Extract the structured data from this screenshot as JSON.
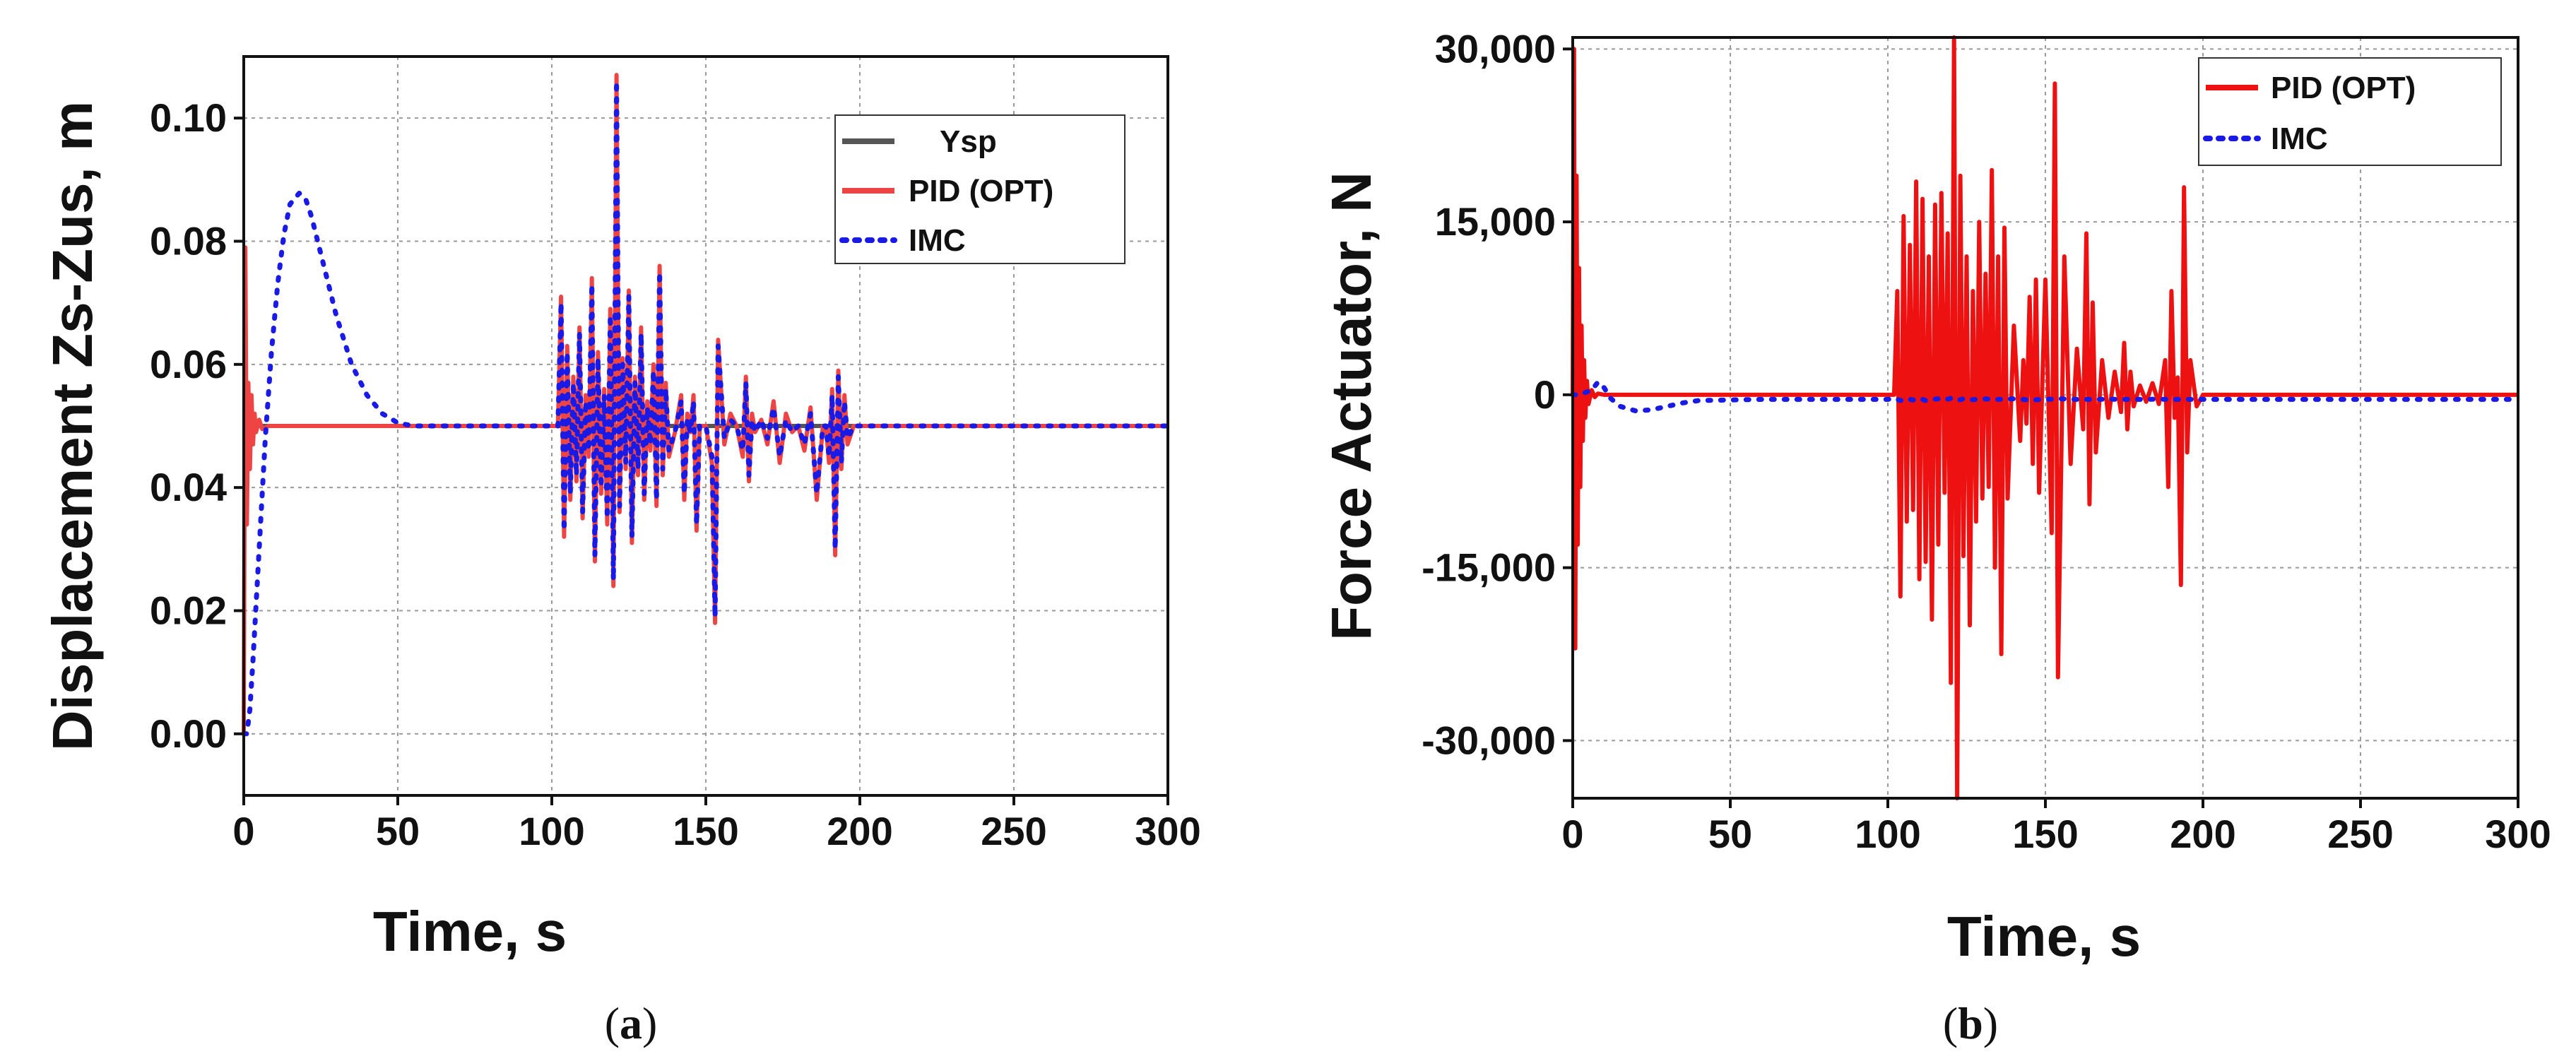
{
  "chart_data": [
    {
      "type": "line",
      "caption_letter": "a",
      "xlabel": "Time, s",
      "ylabel": "Displacement Zs-Zus, m",
      "xlim": [
        0,
        300
      ],
      "ylim": [
        -0.01,
        0.11
      ],
      "xticks": [
        0,
        50,
        100,
        150,
        200,
        250,
        300
      ],
      "xtick_labels": [
        "0",
        "50",
        "100",
        "150",
        "200",
        "250",
        "300"
      ],
      "yticks": [
        0.0,
        0.02,
        0.04,
        0.06,
        0.08,
        0.1
      ],
      "ytick_labels": [
        "0.00",
        "0.02",
        "0.04",
        "0.06",
        "0.08",
        "0.10"
      ],
      "grid": true,
      "legend_position": "top-right",
      "series": [
        {
          "name": "Ysp",
          "color": "#555555",
          "style": "solid",
          "x": [
            0,
            300
          ],
          "y": [
            0.05,
            0.05
          ]
        },
        {
          "name": "PID (OPT)",
          "color": "#ee4444",
          "style": "solid",
          "x": [
            0,
            0.5,
            1,
            1.5,
            2,
            2.5,
            3,
            3.5,
            4,
            5,
            6,
            8,
            100,
            102,
            103,
            104,
            105,
            106,
            107,
            108,
            109,
            110,
            111,
            112,
            113,
            114,
            115,
            116,
            117,
            118,
            119,
            120,
            121,
            122,
            123,
            124,
            125,
            126,
            127,
            128,
            129,
            130,
            131,
            132,
            133,
            134,
            135,
            136,
            137,
            138,
            140,
            142,
            143,
            144,
            145,
            146,
            147,
            148,
            150,
            152,
            153,
            154,
            156,
            158,
            160,
            162,
            163,
            164,
            165,
            166,
            168,
            170,
            172,
            174,
            176,
            178,
            180,
            182,
            184,
            186,
            188,
            189,
            190,
            191,
            192,
            193,
            194,
            195,
            196,
            198,
            200,
            300
          ],
          "y": [
            0.0,
            0.079,
            0.034,
            0.057,
            0.043,
            0.055,
            0.047,
            0.052,
            0.049,
            0.051,
            0.0495,
            0.05,
            0.05,
            0.05,
            0.071,
            0.032,
            0.063,
            0.038,
            0.058,
            0.041,
            0.066,
            0.035,
            0.055,
            0.045,
            0.074,
            0.028,
            0.062,
            0.039,
            0.056,
            0.034,
            0.069,
            0.024,
            0.107,
            0.036,
            0.061,
            0.043,
            0.072,
            0.031,
            0.058,
            0.042,
            0.066,
            0.038,
            0.054,
            0.046,
            0.06,
            0.037,
            0.076,
            0.042,
            0.057,
            0.045,
            0.049,
            0.055,
            0.038,
            0.052,
            0.049,
            0.055,
            0.033,
            0.05,
            0.05,
            0.044,
            0.018,
            0.064,
            0.047,
            0.052,
            0.05,
            0.045,
            0.058,
            0.041,
            0.052,
            0.049,
            0.051,
            0.047,
            0.054,
            0.044,
            0.052,
            0.049,
            0.05,
            0.046,
            0.053,
            0.038,
            0.05,
            0.05,
            0.044,
            0.056,
            0.029,
            0.059,
            0.043,
            0.055,
            0.047,
            0.05,
            0.05,
            0.05
          ]
        },
        {
          "name": "IMC",
          "color": "#1a1ae6",
          "style": "dotted",
          "x": [
            0,
            1,
            2,
            3,
            5,
            7,
            9,
            11,
            13,
            15,
            18,
            20,
            22,
            25,
            30,
            35,
            40,
            45,
            50,
            55,
            60,
            100,
            102,
            103,
            104,
            105,
            106,
            107,
            108,
            109,
            110,
            111,
            112,
            113,
            114,
            115,
            116,
            117,
            118,
            119,
            120,
            121,
            122,
            123,
            124,
            125,
            126,
            127,
            128,
            129,
            130,
            131,
            132,
            133,
            134,
            135,
            136,
            137,
            138,
            140,
            142,
            143,
            144,
            145,
            146,
            147,
            148,
            150,
            152,
            153,
            154,
            156,
            158,
            160,
            162,
            163,
            164,
            165,
            166,
            168,
            170,
            172,
            174,
            176,
            178,
            180,
            182,
            184,
            186,
            188,
            189,
            190,
            191,
            192,
            193,
            194,
            195,
            196,
            198,
            200,
            300
          ],
          "y": [
            0.0,
            0.0,
            0.004,
            0.012,
            0.03,
            0.048,
            0.062,
            0.073,
            0.081,
            0.086,
            0.0878,
            0.087,
            0.084,
            0.078,
            0.068,
            0.06,
            0.055,
            0.052,
            0.0505,
            0.05,
            0.05,
            0.05,
            0.05,
            0.07,
            0.033,
            0.062,
            0.039,
            0.057,
            0.042,
            0.065,
            0.036,
            0.054,
            0.046,
            0.073,
            0.029,
            0.061,
            0.04,
            0.055,
            0.035,
            0.068,
            0.025,
            0.106,
            0.037,
            0.06,
            0.044,
            0.071,
            0.032,
            0.057,
            0.043,
            0.065,
            0.039,
            0.053,
            0.047,
            0.059,
            0.038,
            0.075,
            0.043,
            0.056,
            0.046,
            0.049,
            0.054,
            0.039,
            0.051,
            0.049,
            0.054,
            0.034,
            0.05,
            0.05,
            0.045,
            0.019,
            0.063,
            0.048,
            0.051,
            0.05,
            0.046,
            0.057,
            0.042,
            0.051,
            0.049,
            0.051,
            0.048,
            0.053,
            0.045,
            0.051,
            0.049,
            0.05,
            0.047,
            0.052,
            0.039,
            0.05,
            0.05,
            0.045,
            0.055,
            0.03,
            0.058,
            0.044,
            0.054,
            0.048,
            0.05,
            0.05,
            0.05
          ]
        }
      ]
    },
    {
      "type": "line",
      "caption_letter": "b",
      "xlabel": "Time, s",
      "ylabel": "Force Actuator, N",
      "xlim": [
        0,
        300
      ],
      "ylim": [
        -35000,
        31000
      ],
      "xticks": [
        0,
        50,
        100,
        150,
        200,
        250,
        300
      ],
      "xtick_labels": [
        "0",
        "50",
        "100",
        "150",
        "200",
        "250",
        "300"
      ],
      "yticks": [
        -30000,
        -15000,
        0,
        15000,
        30000
      ],
      "ytick_labels": [
        "-30,000",
        "-15,000",
        "0",
        "15,000",
        "30,000"
      ],
      "grid": true,
      "legend_position": "top-right",
      "series": [
        {
          "name": "PID (OPT)",
          "color": "#ee1111",
          "style": "solid",
          "x": [
            0,
            0.4,
            0.8,
            1.2,
            1.6,
            2.0,
            2.4,
            2.8,
            3.2,
            3.6,
            4.0,
            4.5,
            5,
            6,
            7,
            8,
            10,
            100,
            102,
            103,
            104,
            105,
            106,
            107,
            108,
            109,
            110,
            111,
            112,
            113,
            114,
            115,
            116,
            117,
            118,
            119,
            120,
            121,
            122,
            123,
            124,
            125,
            126,
            127,
            128,
            129,
            130,
            131,
            132,
            133,
            134,
            135,
            136,
            137,
            138,
            140,
            142,
            143,
            144,
            145,
            146,
            147,
            148,
            150,
            152,
            153,
            154,
            156,
            158,
            160,
            162,
            163,
            164,
            165,
            166,
            168,
            170,
            172,
            174,
            175,
            176,
            177,
            178,
            180,
            182,
            184,
            186,
            188,
            189,
            190,
            191,
            192,
            193,
            194,
            195,
            196,
            198,
            200,
            300
          ],
          "y": [
            0,
            30000,
            -22000,
            19000,
            -13000,
            11000,
            -8000,
            6000,
            -4000,
            3000,
            -2000,
            1200,
            -800,
            400,
            -200,
            100,
            0,
            0,
            0,
            9000,
            -17500,
            15500,
            -11000,
            13000,
            -10000,
            18500,
            -16000,
            17000,
            -14500,
            12000,
            -19500,
            16500,
            -13000,
            17500,
            -8500,
            14000,
            -25000,
            31000,
            -35000,
            19000,
            -14000,
            12000,
            -20000,
            9000,
            -11000,
            15000,
            -9000,
            10500,
            -8000,
            19500,
            -15000,
            12000,
            -22500,
            14500,
            -9000,
            6000,
            -4000,
            3000,
            -2500,
            8500,
            -6000,
            10000,
            -8500,
            10000,
            -12000,
            27000,
            -24500,
            12000,
            -6000,
            4000,
            -3000,
            14000,
            -9500,
            8000,
            -5000,
            3000,
            -2000,
            2000,
            -1500,
            4500,
            -3000,
            2000,
            -1000,
            800,
            -600,
            1000,
            -800,
            3000,
            -8000,
            9000,
            -2000,
            1500,
            -16500,
            18000,
            -5000,
            3000,
            -1000,
            0,
            0
          ]
        },
        {
          "name": "IMC",
          "color": "#1a1ae6",
          "style": "dotted",
          "x": [
            0,
            2,
            4,
            6,
            8,
            10,
            12,
            15,
            20,
            25,
            30,
            35,
            40,
            60,
            100,
            102,
            104,
            106,
            108,
            110,
            112,
            114,
            116,
            118,
            120,
            122,
            124,
            126,
            128,
            130,
            135,
            140,
            145,
            150,
            155,
            160,
            165,
            170,
            175,
            180,
            185,
            190,
            195,
            200,
            300
          ],
          "y": [
            0,
            0,
            200,
            400,
            1100,
            600,
            -300,
            -1000,
            -1400,
            -1300,
            -1000,
            -700,
            -500,
            -400,
            -400,
            -300,
            -500,
            -350,
            -450,
            -300,
            -500,
            -400,
            -350,
            -450,
            -300,
            -500,
            -350,
            -450,
            -400,
            -350,
            -400,
            -350,
            -450,
            -400,
            -350,
            -400,
            -400,
            -380,
            -400,
            -400,
            -380,
            -400,
            -400,
            -400,
            -400
          ]
        }
      ]
    }
  ]
}
